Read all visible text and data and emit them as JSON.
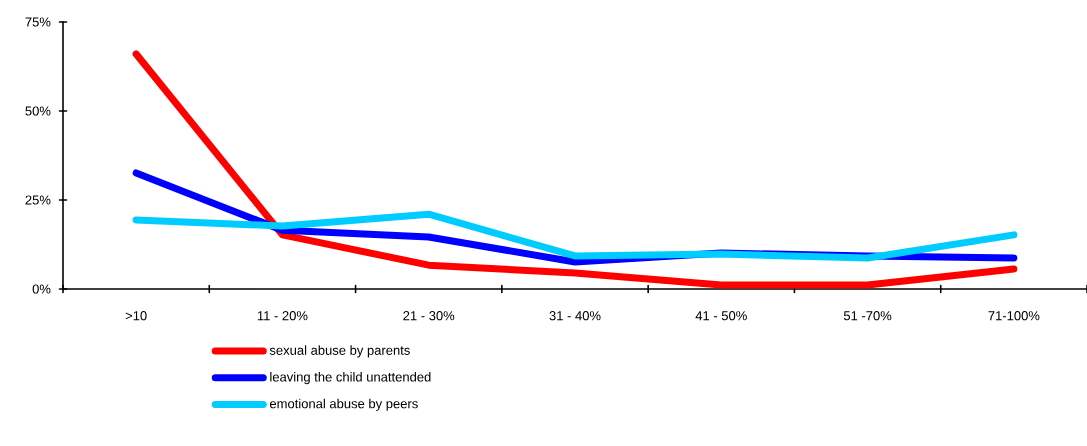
{
  "chart_data": {
    "type": "line",
    "categories": [
      ">10",
      "11 - 20%",
      "21 - 30%",
      "31 - 40%",
      "41 - 50%",
      "51 -70%",
      "71-100%"
    ],
    "series": [
      {
        "name": "sexual abuse by parents",
        "color": "#ff0000",
        "values": [
          66,
          15.2,
          6.7,
          4.5,
          1.1,
          1.1,
          5.6
        ]
      },
      {
        "name": "leaving the child unattended",
        "color": "#0000ff",
        "values": [
          32.6,
          16.5,
          14.6,
          7.6,
          10.1,
          9.3,
          8.7
        ]
      },
      {
        "name": "emotional abuse by peers",
        "color": "#00ccff",
        "values": [
          19.4,
          17.7,
          21,
          9.3,
          9.8,
          8.7,
          15.2
        ]
      }
    ],
    "ylim": [
      0,
      75
    ],
    "yticks": [
      {
        "value": 0,
        "label": "0%"
      },
      {
        "value": 25,
        "label": "25%"
      },
      {
        "value": 50,
        "label": "50%"
      },
      {
        "value": 75,
        "label": "75%"
      }
    ],
    "grid": false,
    "legend": "bottom",
    "marker": "none",
    "line_style": "solid"
  }
}
